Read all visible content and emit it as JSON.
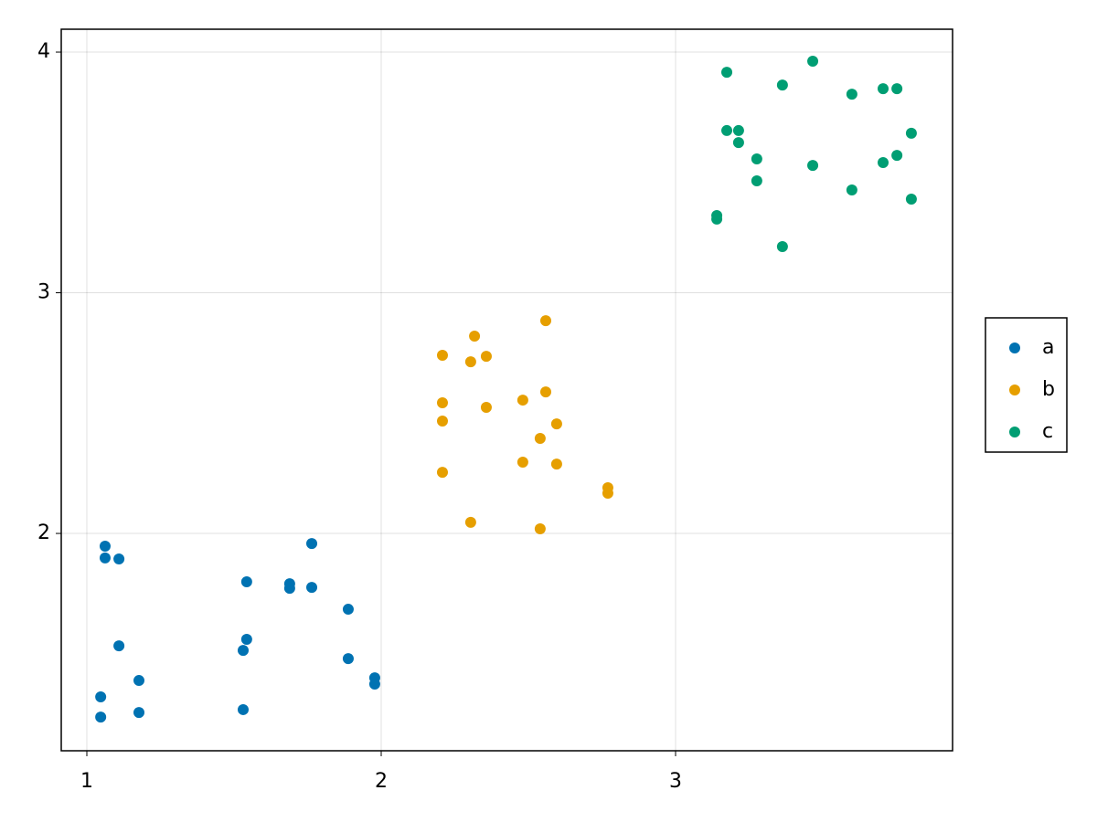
{
  "chart_data": {
    "type": "scatter",
    "xlim": [
      0.913,
      3.941
    ],
    "ylim": [
      1.097,
      4.095
    ],
    "xticks": [
      1,
      2,
      3
    ],
    "yticks": [
      2,
      3,
      4
    ],
    "grid": true,
    "legend": "right",
    "series": [
      {
        "name": "a",
        "color": "#0072b2",
        "x": [
          1.062,
          1.062,
          1.109,
          1.109,
          1.177,
          1.047,
          1.177,
          1.047,
          1.543,
          1.543,
          1.531,
          1.531,
          1.689,
          1.689,
          1.764,
          1.764,
          1.888,
          1.888,
          1.978,
          1.978
        ],
        "values": [
          1.947,
          1.898,
          1.894,
          1.533,
          1.389,
          1.321,
          1.256,
          1.237,
          1.799,
          1.56,
          1.514,
          1.268,
          1.791,
          1.772,
          1.958,
          1.776,
          1.685,
          1.48,
          1.4,
          1.374
        ]
      },
      {
        "name": "b",
        "color": "#e69f00",
        "x": [
          2.317,
          2.559,
          2.208,
          2.304,
          2.357,
          2.208,
          2.208,
          2.357,
          2.481,
          2.559,
          2.596,
          2.54,
          2.481,
          2.596,
          2.208,
          2.77,
          2.77,
          2.304,
          2.54
        ],
        "values": [
          2.82,
          2.884,
          2.74,
          2.713,
          2.736,
          2.543,
          2.467,
          2.524,
          2.554,
          2.588,
          2.455,
          2.395,
          2.296,
          2.288,
          2.254,
          2.19,
          2.167,
          2.046,
          2.019
        ]
      },
      {
        "name": "c",
        "color": "#009e73",
        "x": [
          3.174,
          3.466,
          3.363,
          3.599,
          3.705,
          3.752,
          3.174,
          3.214,
          3.214,
          3.801,
          3.276,
          3.466,
          3.705,
          3.752,
          3.276,
          3.599,
          3.801,
          3.14,
          3.14,
          3.363
        ],
        "values": [
          3.916,
          3.962,
          3.863,
          3.825,
          3.848,
          3.848,
          3.674,
          3.674,
          3.624,
          3.663,
          3.556,
          3.529,
          3.541,
          3.571,
          3.465,
          3.427,
          3.389,
          3.321,
          3.306,
          3.192
        ]
      }
    ]
  }
}
